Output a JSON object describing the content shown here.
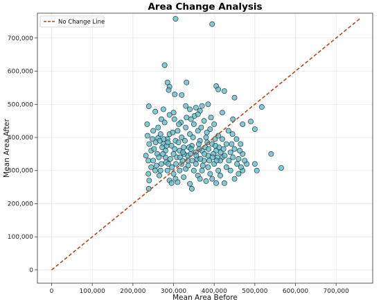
{
  "chart_data": {
    "type": "scatter",
    "title": "Area Change Analysis",
    "xlabel": "Mean Area Before",
    "ylabel": "Mean Area After",
    "xlim": [
      -35000,
      790000
    ],
    "ylim": [
      -40000,
      775000
    ],
    "xticks": [
      0,
      100000,
      200000,
      300000,
      400000,
      500000,
      600000,
      700000
    ],
    "yticks": [
      0,
      100000,
      200000,
      300000,
      400000,
      500000,
      600000,
      700000
    ],
    "xtick_labels": [
      "0",
      "100,000",
      "200,000",
      "300,000",
      "400,000",
      "500,000",
      "600,000",
      "700,000"
    ],
    "ytick_labels": [
      "0",
      "100,000",
      "200,000",
      "300,000",
      "400,000",
      "500,000",
      "600,000",
      "700,000"
    ],
    "grid": true,
    "legend": {
      "placement": "top-left",
      "entries": [
        "No Change Line"
      ]
    },
    "reference_line": {
      "name": "No Change Line",
      "x": [
        0,
        760000
      ],
      "y": [
        0,
        760000
      ],
      "color": "#b5451b",
      "style": "dashed"
    },
    "point_color": "#5fb7c4",
    "point_edge": "#1d3d4a",
    "points": [
      [
        305000,
        758000
      ],
      [
        395000,
        742000
      ],
      [
        278000,
        618000
      ],
      [
        285000,
        566000
      ],
      [
        332000,
        566000
      ],
      [
        290000,
        553000
      ],
      [
        288000,
        543000
      ],
      [
        405000,
        555000
      ],
      [
        410000,
        545000
      ],
      [
        425000,
        540000
      ],
      [
        450000,
        520000
      ],
      [
        320000,
        528000
      ],
      [
        303000,
        530000
      ],
      [
        239000,
        494000
      ],
      [
        517000,
        492000
      ],
      [
        490000,
        448000
      ],
      [
        470000,
        440000
      ],
      [
        500000,
        425000
      ],
      [
        446000,
        455000
      ],
      [
        420000,
        475000
      ],
      [
        385000,
        500000
      ],
      [
        355000,
        490000
      ],
      [
        340000,
        485000
      ],
      [
        365000,
        480000
      ],
      [
        300000,
        475000
      ],
      [
        275000,
        485000
      ],
      [
        255000,
        478000
      ],
      [
        290000,
        468000
      ],
      [
        270000,
        455000
      ],
      [
        235000,
        440000
      ],
      [
        250000,
        420000
      ],
      [
        262000,
        398000
      ],
      [
        236000,
        405000
      ],
      [
        240000,
        380000
      ],
      [
        245000,
        360000
      ],
      [
        232000,
        345000
      ],
      [
        238000,
        330000
      ],
      [
        245000,
        310000
      ],
      [
        238000,
        290000
      ],
      [
        240000,
        270000
      ],
      [
        239000,
        245000
      ],
      [
        255000,
        300000
      ],
      [
        265000,
        285000
      ],
      [
        270000,
        320000
      ],
      [
        260000,
        350000
      ],
      [
        280000,
        340000
      ],
      [
        285000,
        300000
      ],
      [
        290000,
        270000
      ],
      [
        295000,
        262000
      ],
      [
        300000,
        290000
      ],
      [
        305000,
        275000
      ],
      [
        310000,
        265000
      ],
      [
        315000,
        300000
      ],
      [
        320000,
        320000
      ],
      [
        325000,
        280000
      ],
      [
        330000,
        305000
      ],
      [
        335000,
        330000
      ],
      [
        340000,
        260000
      ],
      [
        345000,
        245000
      ],
      [
        350000,
        300000
      ],
      [
        355000,
        320000
      ],
      [
        360000,
        285000
      ],
      [
        365000,
        275000
      ],
      [
        370000,
        300000
      ],
      [
        375000,
        330000
      ],
      [
        380000,
        268000
      ],
      [
        385000,
        310000
      ],
      [
        390000,
        290000
      ],
      [
        395000,
        275000
      ],
      [
        400000,
        320000
      ],
      [
        405000,
        262000
      ],
      [
        410000,
        300000
      ],
      [
        415000,
        285000
      ],
      [
        420000,
        340000
      ],
      [
        425000,
        262000
      ],
      [
        430000,
        310000
      ],
      [
        440000,
        300000
      ],
      [
        450000,
        275000
      ],
      [
        460000,
        290000
      ],
      [
        470000,
        300000
      ],
      [
        480000,
        320000
      ],
      [
        500000,
        320000
      ],
      [
        505000,
        300000
      ],
      [
        540000,
        350000
      ],
      [
        565000,
        308000
      ],
      [
        275000,
        380000
      ],
      [
        280000,
        360000
      ],
      [
        285000,
        395000
      ],
      [
        290000,
        410000
      ],
      [
        295000,
        375000
      ],
      [
        300000,
        350000
      ],
      [
        305000,
        390000
      ],
      [
        310000,
        420000
      ],
      [
        315000,
        360000
      ],
      [
        320000,
        400000
      ],
      [
        325000,
        370000
      ],
      [
        330000,
        430000
      ],
      [
        335000,
        345000
      ],
      [
        340000,
        410000
      ],
      [
        345000,
        375000
      ],
      [
        350000,
        440000
      ],
      [
        355000,
        355000
      ],
      [
        360000,
        420000
      ],
      [
        365000,
        390000
      ],
      [
        370000,
        360000
      ],
      [
        375000,
        450000
      ],
      [
        380000,
        400000
      ],
      [
        385000,
        345000
      ],
      [
        390000,
        425000
      ],
      [
        395000,
        380000
      ],
      [
        400000,
        440000
      ],
      [
        405000,
        360000
      ],
      [
        410000,
        405000
      ],
      [
        415000,
        330000
      ],
      [
        420000,
        395000
      ],
      [
        430000,
        380000
      ],
      [
        435000,
        420000
      ],
      [
        440000,
        355000
      ],
      [
        445000,
        410000
      ],
      [
        450000,
        365000
      ],
      [
        455000,
        395000
      ],
      [
        460000,
        335000
      ],
      [
        465000,
        380000
      ],
      [
        470000,
        350000
      ],
      [
        475000,
        330000
      ],
      [
        262000,
        430000
      ],
      [
        268000,
        410000
      ],
      [
        272000,
        370000
      ],
      [
        278000,
        445000
      ],
      [
        282000,
        325000
      ],
      [
        292000,
        335000
      ],
      [
        298000,
        415000
      ],
      [
        302000,
        455000
      ],
      [
        308000,
        340000
      ],
      [
        312000,
        385000
      ],
      [
        318000,
        445000
      ],
      [
        322000,
        330000
      ],
      [
        328000,
        390000
      ],
      [
        332000,
        460000
      ],
      [
        338000,
        370000
      ],
      [
        342000,
        350000
      ],
      [
        348000,
        400000
      ],
      [
        352000,
        465000
      ],
      [
        358000,
        335000
      ],
      [
        362000,
        380000
      ],
      [
        368000,
        430000
      ],
      [
        372000,
        315000
      ],
      [
        378000,
        370000
      ],
      [
        382000,
        415000
      ],
      [
        388000,
        330000
      ],
      [
        392000,
        460000
      ],
      [
        398000,
        350000
      ],
      [
        402000,
        395000
      ],
      [
        408000,
        340000
      ],
      [
        412000,
        370000
      ],
      [
        250000,
        330000
      ],
      [
        252000,
        365000
      ],
      [
        258000,
        315000
      ],
      [
        264000,
        340000
      ],
      [
        268000,
        300000
      ],
      [
        274000,
        350000
      ],
      [
        287000,
        320000
      ],
      [
        296000,
        310000
      ],
      [
        306000,
        320000
      ],
      [
        316000,
        340000
      ],
      [
        326000,
        350000
      ],
      [
        336000,
        315000
      ],
      [
        346000,
        330000
      ],
      [
        356000,
        345000
      ],
      [
        366000,
        335000
      ],
      [
        376000,
        350000
      ],
      [
        386000,
        365000
      ],
      [
        396000,
        340000
      ],
      [
        406000,
        330000
      ],
      [
        416000,
        355000
      ],
      [
        426000,
        345000
      ],
      [
        436000,
        330000
      ],
      [
        446000,
        340000
      ],
      [
        456000,
        320000
      ],
      [
        466000,
        310000
      ],
      [
        360000,
        470000
      ],
      [
        330000,
        495000
      ],
      [
        370000,
        495000
      ],
      [
        313000,
        440000
      ],
      [
        343000,
        455000
      ],
      [
        283000,
        375000
      ],
      [
        303000,
        365000
      ],
      [
        323000,
        355000
      ],
      [
        343000,
        365000
      ],
      [
        363000,
        365000
      ],
      [
        383000,
        385000
      ],
      [
        403000,
        375000
      ],
      [
        423000,
        365000
      ],
      [
        443000,
        380000
      ],
      [
        463000,
        360000
      ],
      [
        248000,
        395000
      ],
      [
        256000,
        385000
      ],
      [
        266000,
        390000
      ],
      [
        276000,
        395000
      ],
      [
        286000,
        385000
      ]
    ]
  }
}
